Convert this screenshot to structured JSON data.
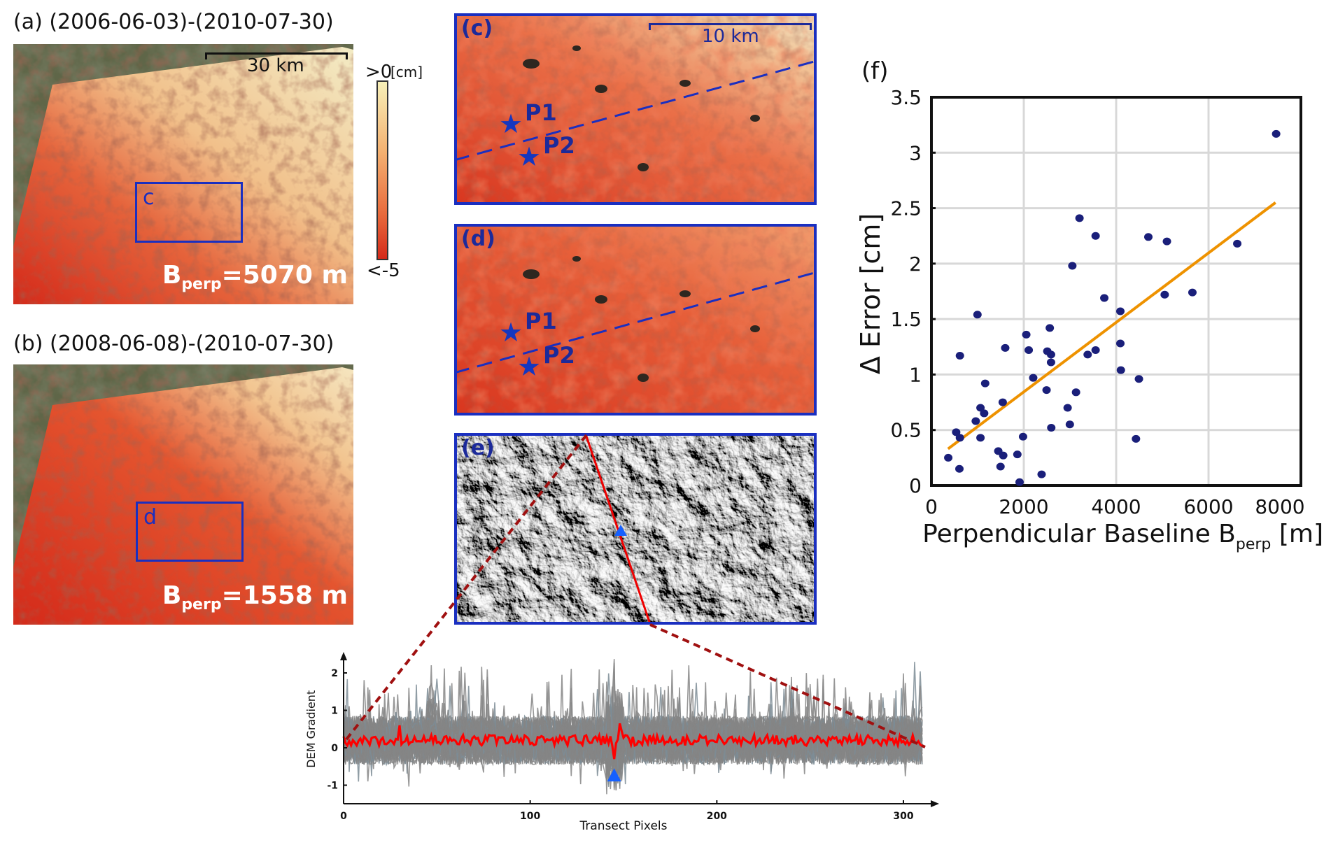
{
  "panels": {
    "a": {
      "label": "(a) (2006-06-03)-(2010-07-30)",
      "scale_bar": "30 km",
      "box_label": "c",
      "bperp_prefix": "B",
      "bperp_sub": "perp",
      "bperp_value": "=5070 m"
    },
    "b": {
      "label": "(b) (2008-06-08)-(2010-07-30)",
      "box_label": "d",
      "bperp_prefix": "B",
      "bperp_sub": "perp",
      "bperp_value": "=1558 m"
    },
    "colorbar": {
      "top": ">0",
      "unit": "[cm]",
      "bottom": "<-5",
      "colors": [
        "#f7f0b8",
        "#f4b070",
        "#e86a3c",
        "#d42a1a"
      ]
    },
    "c": {
      "label": "(c)",
      "scale_bar": "10 km",
      "p1": "P1",
      "p2": "P2"
    },
    "d": {
      "label": "(d)",
      "p1": "P1",
      "p2": "P2"
    },
    "e": {
      "label": "(e)"
    },
    "f": {
      "label": "(f)"
    }
  },
  "colors": {
    "frame": "#1a2fc0",
    "points": "#1a1f7a",
    "fit": "#ee9200",
    "mean": "#ff0000",
    "profiles": "#808080",
    "marker": "#1560ff",
    "connector": "#a01010"
  },
  "chart_data": [
    {
      "type": "scatter",
      "title": "",
      "xlabel": "Perpendicular Baseline B",
      "xlabel_sub": "perp",
      "xlabel_unit": " [m]",
      "ylabel": "Δ Error [cm]",
      "xlim": [
        0,
        8000
      ],
      "ylim": [
        0,
        3.5
      ],
      "xticks": [
        0,
        2000,
        4000,
        6000,
        8000
      ],
      "yticks": [
        0,
        0.5,
        1,
        1.5,
        2,
        2.5,
        3,
        3.5
      ],
      "ytick_labels": [
        "0",
        "0.5",
        "1",
        "1.5",
        "2",
        "2.5",
        "3",
        "3.5"
      ],
      "grid": true,
      "x": [
        7464,
        3206,
        3555,
        4697,
        5099,
        6622,
        3051,
        5051,
        5651,
        3743,
        4091,
        997,
        2563,
        2054,
        1598,
        2107,
        2509,
        2590,
        617,
        3383,
        3555,
        4091,
        2590,
        4102,
        2204,
        4493,
        1164,
        2493,
        3131,
        1544,
        2949,
        1062,
        1142,
        960,
        2997,
        2595,
        536,
        617,
        1062,
        4429,
        1984,
        1448,
        1555,
        1861,
        365,
        1496,
        606,
        2386,
        1909
      ],
      "y": [
        3.17,
        2.41,
        2.25,
        2.24,
        2.2,
        2.18,
        1.98,
        1.72,
        1.74,
        1.69,
        1.57,
        1.54,
        1.42,
        1.36,
        1.24,
        1.22,
        1.21,
        1.18,
        1.17,
        1.18,
        1.22,
        1.28,
        1.11,
        1.04,
        0.97,
        0.96,
        0.92,
        0.86,
        0.84,
        0.75,
        0.7,
        0.7,
        0.65,
        0.58,
        0.55,
        0.52,
        0.48,
        0.43,
        0.43,
        0.42,
        0.44,
        0.31,
        0.27,
        0.28,
        0.25,
        0.17,
        0.15,
        0.1,
        0.03
      ],
      "fit_line": {
        "x": [
          360,
          7450
        ],
        "y": [
          0.33,
          2.55
        ]
      }
    },
    {
      "type": "line",
      "title": "",
      "xlabel": "Transect Pixels",
      "ylabel": "DEM Gradient",
      "xlim": [
        0,
        310
      ],
      "ylim": [
        -1.5,
        2.5
      ],
      "xticks": [
        0,
        100,
        200,
        300
      ],
      "yticks": [
        -1,
        0,
        1,
        2
      ],
      "series": [
        {
          "name": "individual profiles",
          "count": 40,
          "range": [
            -1.4,
            2.4
          ]
        },
        {
          "name": "mean profile",
          "typical": 0.2,
          "min": -0.3,
          "min_at": 145,
          "max": 0.65,
          "max_at": 148
        }
      ],
      "marker_x": 145
    }
  ]
}
